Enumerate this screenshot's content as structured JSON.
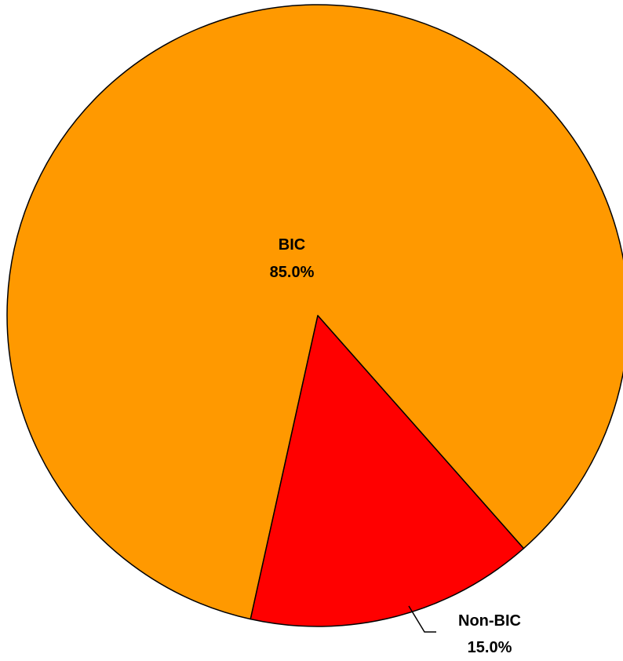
{
  "chart_data": {
    "type": "pie",
    "title": "",
    "slices": [
      {
        "label": "BIC",
        "value": 85.0,
        "value_label": "85.0%",
        "color": "#FF9900"
      },
      {
        "label": "Non-BIC",
        "value": 15.0,
        "value_label": "15.0%",
        "color": "#FF0000"
      }
    ],
    "start_angle_deg": 192.5,
    "direction": "clockwise",
    "outline_color": "#000000",
    "legend": "none"
  }
}
